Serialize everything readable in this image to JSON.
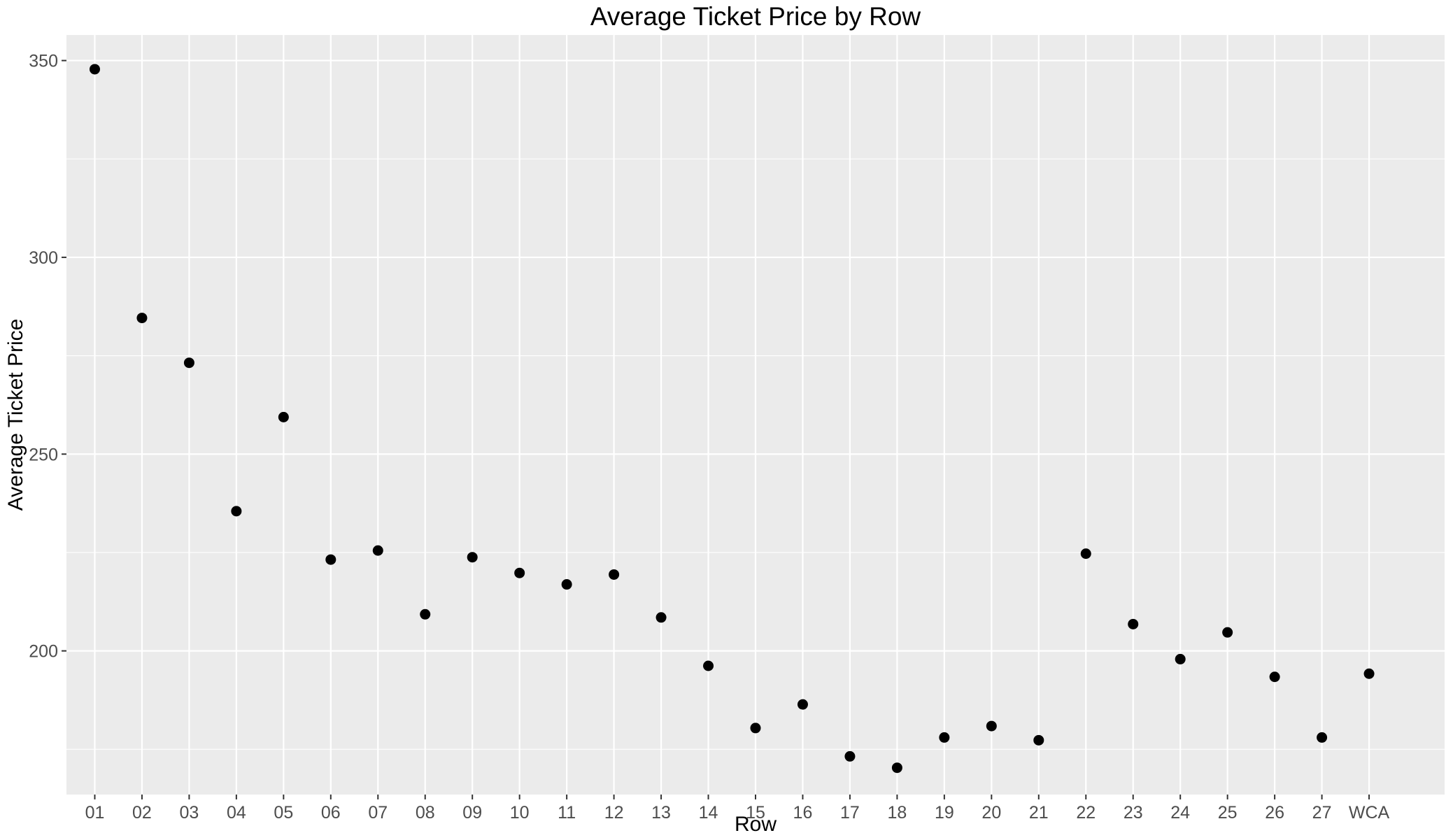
{
  "chart_data": {
    "type": "scatter",
    "title": "Average Ticket Price by Row",
    "xlabel": "Row",
    "ylabel": "Average Ticket Price",
    "categories": [
      "01",
      "02",
      "03",
      "04",
      "05",
      "06",
      "07",
      "08",
      "09",
      "10",
      "11",
      "12",
      "13",
      "14",
      "15",
      "16",
      "17",
      "18",
      "19",
      "20",
      "21",
      "22",
      "23",
      "24",
      "25",
      "26",
      "27",
      "WCA"
    ],
    "values": [
      347.8,
      284.6,
      273.2,
      235.5,
      259.4,
      223.2,
      225.5,
      209.3,
      223.8,
      219.8,
      216.9,
      219.4,
      208.5,
      196.2,
      180.4,
      186.4,
      173.2,
      170.3,
      178.0,
      180.9,
      177.3,
      224.7,
      206.8,
      197.9,
      204.7,
      193.4,
      178.0,
      194.2
    ],
    "ylim": [
      163.5,
      356.5
    ],
    "yticks": [
      200,
      250,
      300,
      350
    ],
    "grid": true,
    "legend": "none",
    "colors": {
      "panel_background": "#ebebeb",
      "gridline": "#ffffff",
      "point": "#000000",
      "tick_label": "#4d4d4d"
    }
  }
}
